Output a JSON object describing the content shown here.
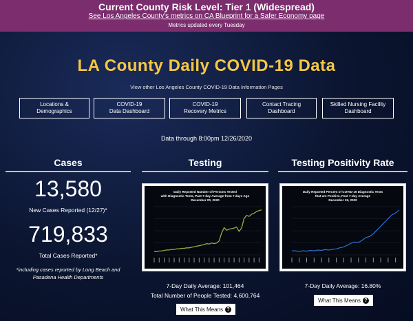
{
  "banner": {
    "title": "Current County Risk Level: Tier 1 (Widespread)",
    "link": "See Los Angeles County's metrics on CA Blueprint for a Safer Economy page",
    "note": "Metrics updated every Tuesday",
    "color": "#7b2d6e"
  },
  "page_title": "LA County Daily COVID-19 Data",
  "subtext": "View other Los Angeles County COVID-19 Data Information Pages",
  "nav": [
    {
      "line1": "Locations &",
      "line2": "Demographics"
    },
    {
      "line1": "COVID-19",
      "line2": "Data Dashboard"
    },
    {
      "line1": "COVID-19",
      "line2": "Recovery Metrics"
    },
    {
      "line1": "Contact Tracing",
      "line2": "Dashboard"
    },
    {
      "line1": "Skilled Nursing Facility",
      "line2": "Dashboard"
    }
  ],
  "data_through": "Data through 8:00pm 12/26/2020",
  "cases": {
    "heading": "Cases",
    "new_value": "13,580",
    "new_caption": "New Cases Reported (12/27)*",
    "total_value": "719,833",
    "total_caption": "Total Cases Reported*",
    "footnote": "*including cases reported by Long Beach and Pasadena Health Departments"
  },
  "testing": {
    "heading": "Testing",
    "chart_title_1": "Daily Reported Number of Persons Tested",
    "chart_title_2": "with Diagnostic Tests, Past 7-day Average from 7 days Ago",
    "chart_title_3": "December 20, 2020",
    "avg_line": "7-Day Daily Average: 101,464",
    "total_line": "Total Number of People Tested: 4,600,764",
    "button": "What This Means"
  },
  "positivity": {
    "heading": "Testing Positivity Rate",
    "chart_title_1": "Daily Reported Percent of COVID-19 Diagnostic Tests",
    "chart_title_2": "that are Positive, Past 7-day Average",
    "chart_title_3": "December 19, 2020",
    "avg_line": "7-Day Daily Average: 16.80%",
    "button": "What This Means"
  },
  "chart_data": [
    {
      "type": "line",
      "title": "Daily Reported Number of Persons Tested with Diagnostic Tests, Past 7-day Average from 7 days Ago December 20, 2020",
      "series": [
        {
          "values": [
            20,
            20,
            21,
            21,
            22,
            23,
            23,
            24,
            24,
            25,
            25,
            26,
            26,
            27,
            27,
            28,
            29,
            30,
            31,
            32,
            33,
            35,
            34,
            36,
            35,
            36,
            40,
            55,
            65,
            60,
            62,
            63,
            64,
            66,
            58,
            64,
            82,
            88,
            86,
            90,
            92,
            95,
            97,
            98
          ]
        }
      ],
      "color": "#9aab3a"
    },
    {
      "type": "line",
      "title": "Daily Reported Percent of COVID-19 Diagnostic Tests that are Positive, Past 7-day Average December 19, 2020",
      "series": [
        {
          "values": [
            6,
            6,
            5.8,
            6,
            5.9,
            6.1,
            6,
            6.2,
            6.1,
            6.3,
            6.2,
            6.4,
            6.5,
            6.8,
            7,
            7.5,
            8,
            8.3,
            8.2,
            8.8,
            9.5,
            9.8,
            10.5,
            11.5,
            12.5,
            13.5,
            14.5,
            15.5,
            16,
            16.8
          ]
        }
      ],
      "color": "#2e6fd0"
    }
  ]
}
